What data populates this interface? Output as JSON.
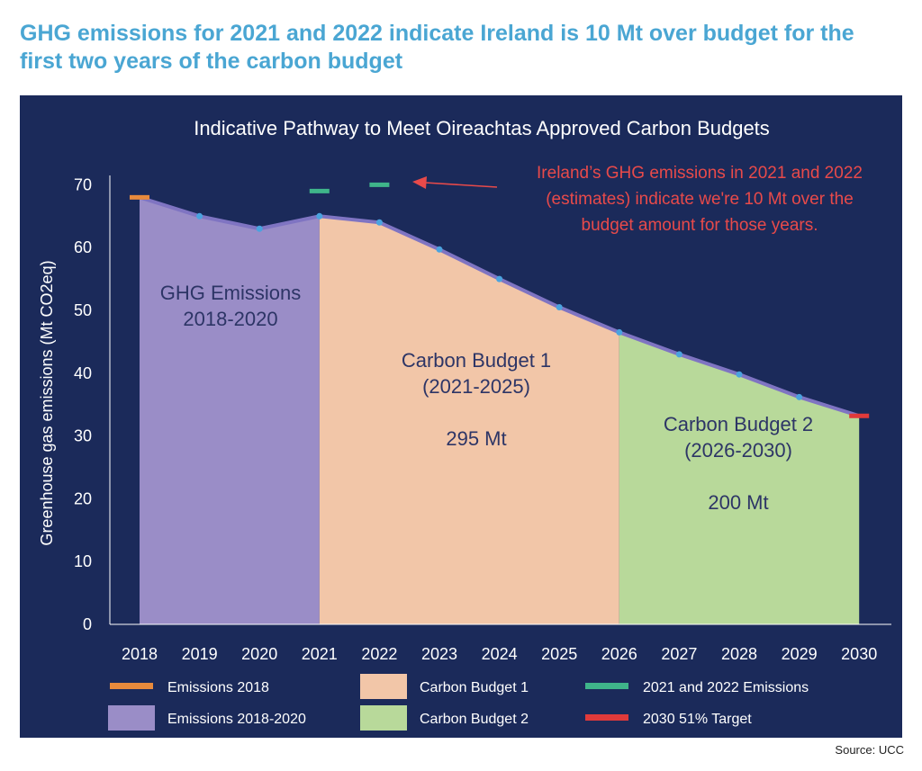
{
  "headline": "GHG emissions for 2021 and 2022 indicate Ireland is 10 Mt over budget for the first two years of the carbon budget",
  "source": "Source: UCC",
  "colors": {
    "panel": "#1b2a5a",
    "emissions_fill": "#9a8dc7",
    "budget1_fill": "#f2c6a8",
    "budget2_fill": "#b8d99a",
    "line": "#7f74c2",
    "points": "#4aa3df",
    "marker_2018": "#e88a3c",
    "marker_2021_2022": "#3fb58a",
    "marker_target": "#e03a3a",
    "annotation": "#e84a4a",
    "region_label": "#2d3566",
    "axis_text": "#ffffff"
  },
  "chart_data": {
    "type": "area",
    "title": "Indicative Pathway to Meet Oireachtas Approved Carbon Budgets",
    "ylabel": "Greenhouse gas emissions (Mt CO2eq)",
    "xlabel": "",
    "ylim": [
      0,
      70
    ],
    "yticks": [
      0,
      10,
      20,
      30,
      40,
      50,
      60,
      70
    ],
    "x": [
      2018,
      2019,
      2020,
      2021,
      2022,
      2023,
      2024,
      2025,
      2026,
      2027,
      2028,
      2029,
      2030
    ],
    "pathway": [
      68,
      65,
      63,
      65,
      64,
      59.7,
      55,
      50.5,
      46.5,
      43,
      39.8,
      36.2,
      33.2
    ],
    "regions": [
      {
        "key": "emissions",
        "from": 2018,
        "to": 2021,
        "lines": [
          "GHG Emissions",
          "2018-2020"
        ]
      },
      {
        "key": "budget1",
        "from": 2021,
        "to": 2026,
        "lines": [
          "Carbon Budget 1",
          "(2021-2025)",
          "",
          "295 Mt"
        ]
      },
      {
        "key": "budget2",
        "from": 2026,
        "to": 2030,
        "lines": [
          "Carbon Budget 2",
          "(2026-2030)",
          "",
          "200 Mt"
        ]
      }
    ],
    "markers": [
      {
        "key": "marker_2018",
        "x": 2018,
        "y": 68
      },
      {
        "key": "marker_2021_2022",
        "x": 2021,
        "y": 69
      },
      {
        "key": "marker_2021_2022",
        "x": 2022,
        "y": 70
      },
      {
        "key": "marker_target",
        "x": 2030,
        "y": 33.2
      }
    ],
    "annotation": {
      "lines": [
        "Ireland’s GHG emissions in 2021 and 2022",
        "(estimates) indicate we're 10 Mt over the",
        "budget amount for those years."
      ]
    },
    "legend": [
      {
        "label": "Emissions 2018",
        "swatch": "bar",
        "color_key": "marker_2018"
      },
      {
        "label": "Carbon Budget 1",
        "swatch": "box",
        "color_key": "budget1_fill"
      },
      {
        "label": "2021 and 2022 Emissions",
        "swatch": "bar",
        "color_key": "marker_2021_2022"
      },
      {
        "label": "Emissions 2018-2020",
        "swatch": "box",
        "color_key": "emissions_fill"
      },
      {
        "label": "Carbon Budget 2",
        "swatch": "box",
        "color_key": "budget2_fill"
      },
      {
        "label": "2030 51% Target",
        "swatch": "bar",
        "color_key": "marker_target"
      }
    ],
    "legend_placement": "bottom",
    "grid": false
  }
}
